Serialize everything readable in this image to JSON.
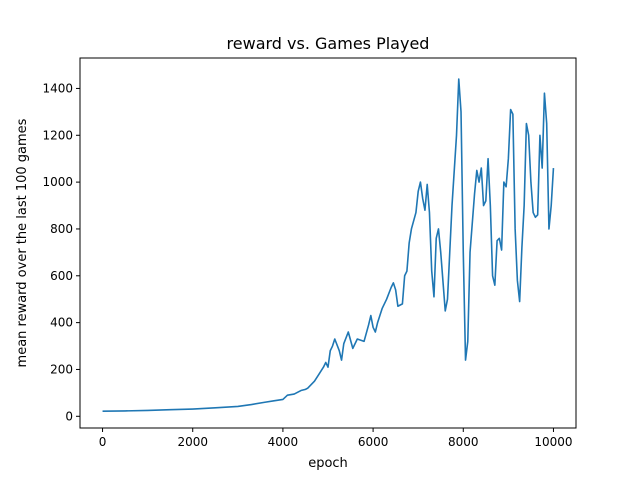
{
  "chart_data": {
    "type": "line",
    "title": "reward vs. Games Played",
    "xlabel": "epoch",
    "ylabel": "mean reward over the last 100 games",
    "xlim": [
      -500,
      10500
    ],
    "ylim": [
      -50,
      1530
    ],
    "x_ticks": [
      0,
      2000,
      4000,
      6000,
      8000,
      10000
    ],
    "x_tick_labels": [
      "0",
      "2000",
      "4000",
      "6000",
      "8000",
      "10000"
    ],
    "y_ticks": [
      0,
      200,
      400,
      600,
      800,
      1000,
      1200,
      1400
    ],
    "y_tick_labels": [
      "0",
      "200",
      "400",
      "600",
      "800",
      "1000",
      "1200",
      "1400"
    ],
    "grid": false,
    "series": [
      {
        "name": "mean reward",
        "color": "#1f77b4",
        "points": [
          [
            0,
            22
          ],
          [
            500,
            23
          ],
          [
            1000,
            25
          ],
          [
            1500,
            28
          ],
          [
            2000,
            31
          ],
          [
            2500,
            36
          ],
          [
            3000,
            42
          ],
          [
            3300,
            50
          ],
          [
            3600,
            60
          ],
          [
            3800,
            66
          ],
          [
            4000,
            72
          ],
          [
            4100,
            90
          ],
          [
            4250,
            95
          ],
          [
            4400,
            110
          ],
          [
            4500,
            115
          ],
          [
            4550,
            120
          ],
          [
            4700,
            150
          ],
          [
            4800,
            180
          ],
          [
            4900,
            210
          ],
          [
            4950,
            230
          ],
          [
            5000,
            210
          ],
          [
            5050,
            280
          ],
          [
            5100,
            300
          ],
          [
            5150,
            330
          ],
          [
            5250,
            280
          ],
          [
            5300,
            240
          ],
          [
            5350,
            310
          ],
          [
            5450,
            360
          ],
          [
            5550,
            290
          ],
          [
            5650,
            330
          ],
          [
            5800,
            320
          ],
          [
            5900,
            390
          ],
          [
            5950,
            430
          ],
          [
            6000,
            380
          ],
          [
            6050,
            360
          ],
          [
            6100,
            400
          ],
          [
            6200,
            460
          ],
          [
            6300,
            500
          ],
          [
            6400,
            550
          ],
          [
            6450,
            570
          ],
          [
            6500,
            540
          ],
          [
            6550,
            470
          ],
          [
            6650,
            480
          ],
          [
            6700,
            600
          ],
          [
            6750,
            620
          ],
          [
            6800,
            740
          ],
          [
            6850,
            800
          ],
          [
            6950,
            870
          ],
          [
            7000,
            960
          ],
          [
            7050,
            1000
          ],
          [
            7100,
            930
          ],
          [
            7150,
            880
          ],
          [
            7200,
            990
          ],
          [
            7250,
            870
          ],
          [
            7300,
            620
          ],
          [
            7350,
            510
          ],
          [
            7400,
            760
          ],
          [
            7450,
            800
          ],
          [
            7500,
            700
          ],
          [
            7600,
            450
          ],
          [
            7650,
            500
          ],
          [
            7750,
            900
          ],
          [
            7850,
            1200
          ],
          [
            7900,
            1440
          ],
          [
            7950,
            1300
          ],
          [
            8000,
            700
          ],
          [
            8050,
            240
          ],
          [
            8100,
            320
          ],
          [
            8150,
            700
          ],
          [
            8250,
            950
          ],
          [
            8300,
            1050
          ],
          [
            8350,
            1000
          ],
          [
            8400,
            1060
          ],
          [
            8450,
            900
          ],
          [
            8500,
            920
          ],
          [
            8550,
            1100
          ],
          [
            8600,
            900
          ],
          [
            8650,
            600
          ],
          [
            8700,
            560
          ],
          [
            8750,
            750
          ],
          [
            8800,
            760
          ],
          [
            8850,
            710
          ],
          [
            8900,
            1000
          ],
          [
            8950,
            980
          ],
          [
            9000,
            1100
          ],
          [
            9050,
            1310
          ],
          [
            9100,
            1290
          ],
          [
            9150,
            800
          ],
          [
            9200,
            580
          ],
          [
            9250,
            490
          ],
          [
            9300,
            720
          ],
          [
            9350,
            900
          ],
          [
            9400,
            1250
          ],
          [
            9450,
            1200
          ],
          [
            9500,
            1000
          ],
          [
            9550,
            870
          ],
          [
            9600,
            850
          ],
          [
            9650,
            860
          ],
          [
            9700,
            1200
          ],
          [
            9750,
            1060
          ],
          [
            9800,
            1380
          ],
          [
            9850,
            1250
          ],
          [
            9900,
            800
          ],
          [
            9950,
            900
          ],
          [
            10000,
            1060
          ]
        ]
      }
    ]
  }
}
